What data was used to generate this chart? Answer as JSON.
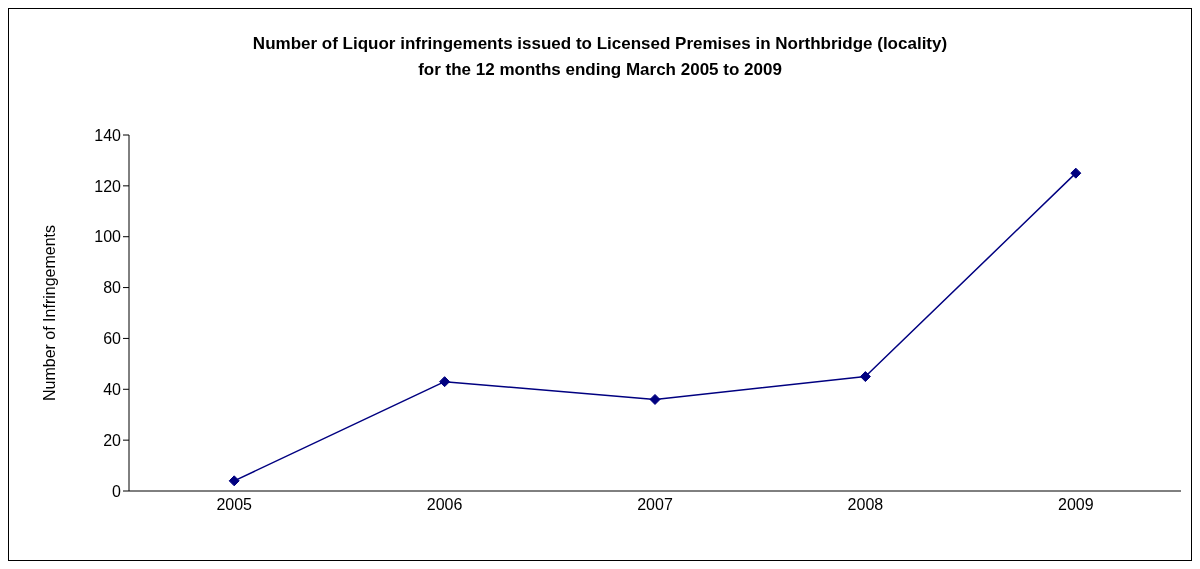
{
  "chart_data": {
    "type": "line",
    "title": "Number of Liquor infringements issued to Licensed Premises in Northbridge (locality)\nfor the 12 months ending March 2005 to 2009",
    "ylabel": "Number of Infringements",
    "categories": [
      "2005",
      "2006",
      "2007",
      "2008",
      "2009"
    ],
    "series": [
      {
        "color": "#000080",
        "values": [
          4,
          43,
          36,
          45,
          125
        ]
      }
    ],
    "ylim": [
      0,
      140
    ],
    "yticks": [
      0,
      20,
      40,
      60,
      80,
      100,
      120,
      140
    ],
    "grid": false,
    "legend": false,
    "marker": "diamond",
    "line_style": "solid"
  }
}
